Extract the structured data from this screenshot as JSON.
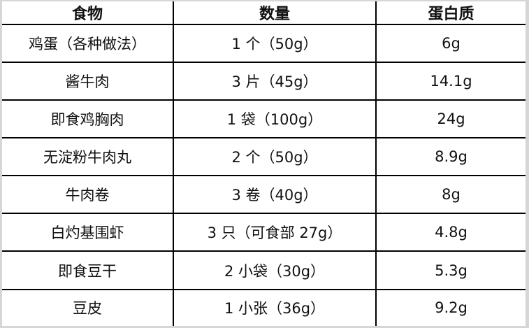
{
  "table": {
    "headers": [
      "食物",
      "数量",
      "蛋白质"
    ],
    "rows": [
      [
        "鸡蛋（各种做法）",
        "1 个（50g）",
        "6g"
      ],
      [
        "酱牛肉",
        "3 片（45g）",
        "14.1g"
      ],
      [
        "即食鸡胸肉",
        "1 袋（100g）",
        "24g"
      ],
      [
        "无淀粉牛肉丸",
        "2 个（50g）",
        "8.9g"
      ],
      [
        "牛肉卷",
        "3 卷（40g）",
        "8g"
      ],
      [
        "白灼基围虾",
        "3 只（可食部 27g）",
        "4.8g"
      ],
      [
        "即食豆干",
        "2 小袋（30g）",
        "5.3g"
      ],
      [
        "豆皮",
        "1 小张（36g）",
        "9.2g"
      ]
    ]
  }
}
